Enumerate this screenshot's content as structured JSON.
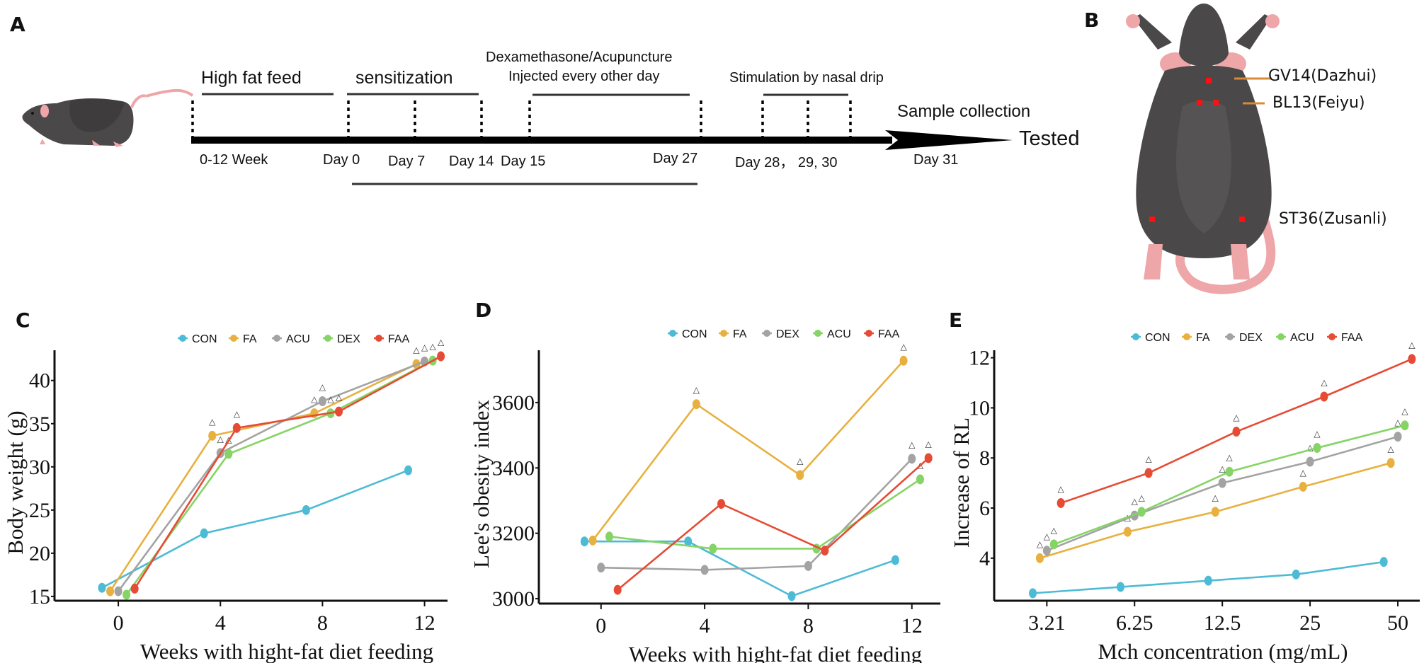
{
  "panels": {
    "A": {
      "letter": "A",
      "phases": {
        "high_fat_feed": "High fat feed",
        "sensitization": "sensitization",
        "dex_acu_line1": "Dexamethasone/Acupuncture",
        "dex_acu_line2": "Injected every other day",
        "nasal_drip": "Stimulation by nasal drip",
        "sample_collection": "Sample collection",
        "tested": "Tested"
      },
      "timepoints": {
        "weeks": "0-12 Week",
        "day0": "Day 0",
        "day7": "Day 7",
        "day14": "Day 14",
        "day15": "Day 15",
        "day27": "Day 27",
        "day28_30": "Day 28， 29, 30",
        "day31": "Day 31"
      }
    },
    "B": {
      "letter": "B",
      "acupoints": {
        "gv14": "GV14(Dazhui)",
        "bl13": "BL13(Feiyu)",
        "st36": "ST36(Zusanli)"
      },
      "colors": {
        "body": "#4a4849",
        "skin": "#eea6a8",
        "point": "#ff1010",
        "needle": "#d98a36"
      }
    },
    "C": {
      "letter": "C"
    },
    "D": {
      "letter": "D"
    },
    "E": {
      "letter": "E"
    }
  },
  "colors": {
    "CON": "#4dbbd5",
    "FA": "#e8b03f",
    "ACU_C": "#a3a3a3",
    "DEX_C": "#86d466",
    "DEX": "#a3a3a3",
    "ACU": "#86d466",
    "FAA": "#e64b35"
  },
  "chart_data": [
    {
      "type": "line",
      "panel": "C",
      "title": "",
      "xlabel": "Weeks with hight-fat diet feeding",
      "ylabel": "Body weight (g)",
      "x": [
        0,
        4,
        8,
        12
      ],
      "x_ticks": [
        "0",
        "4",
        "8",
        "12"
      ],
      "xlim": [
        -2.5,
        12.9
      ],
      "ylim": [
        14.5,
        43.5
      ],
      "y_ticks": [
        15,
        20,
        25,
        30,
        35,
        40
      ],
      "legend": {
        "placement": "top",
        "entries": [
          "CON",
          "FA",
          "ACU",
          "DEX",
          "FAA"
        ]
      },
      "dodge": [
        -0.64,
        -0.32,
        0,
        0.32,
        0.64
      ],
      "series": [
        {
          "name": "CON",
          "color_key": "CON",
          "values": [
            16.0,
            22.3,
            25.0,
            29.6
          ],
          "sig": [
            false,
            false,
            false,
            false
          ]
        },
        {
          "name": "FA",
          "color_key": "FA",
          "values": [
            15.6,
            33.6,
            36.2,
            41.9
          ],
          "sig": [
            false,
            true,
            true,
            true
          ]
        },
        {
          "name": "ACU",
          "color_key": "ACU_C",
          "values": [
            15.6,
            31.6,
            37.6,
            42.2
          ],
          "sig": [
            false,
            true,
            true,
            true
          ]
        },
        {
          "name": "DEX",
          "color_key": "DEX_C",
          "values": [
            15.2,
            31.5,
            36.2,
            42.3
          ],
          "sig": [
            false,
            true,
            true,
            true
          ]
        },
        {
          "name": "FAA",
          "color_key": "FAA",
          "values": [
            15.9,
            34.5,
            36.4,
            42.8
          ],
          "sig": [
            false,
            true,
            true,
            true
          ]
        }
      ],
      "grid": false
    },
    {
      "type": "line",
      "panel": "D",
      "title": "",
      "xlabel": "Weeks with hight-fat diet feeding",
      "ylabel": "Lee's obesity index",
      "x": [
        0,
        4,
        8,
        12
      ],
      "x_ticks": [
        "0",
        "4",
        "8",
        "12"
      ],
      "xlim": [
        -2.4,
        13.1
      ],
      "ylim": [
        2985,
        3760
      ],
      "y_ticks": [
        3000,
        3200,
        3400,
        3600
      ],
      "legend": {
        "placement": "top",
        "entries": [
          "CON",
          "FA",
          "DEX",
          "ACU",
          "FAA"
        ]
      },
      "dodge": [
        -0.64,
        -0.32,
        0,
        0.32,
        0.64
      ],
      "series": [
        {
          "name": "CON",
          "color_key": "CON",
          "values": [
            3175,
            3175,
            3008,
            3118
          ],
          "sig": [
            false,
            false,
            false,
            false
          ]
        },
        {
          "name": "FA",
          "color_key": "FA",
          "values": [
            3178,
            3595,
            3378,
            3728
          ],
          "sig": [
            false,
            true,
            true,
            true
          ]
        },
        {
          "name": "DEX",
          "color_key": "DEX",
          "values": [
            3095,
            3088,
            3100,
            3428
          ],
          "sig": [
            false,
            false,
            false,
            true
          ]
        },
        {
          "name": "ACU",
          "color_key": "ACU",
          "values": [
            3190,
            3153,
            3153,
            3365
          ],
          "sig": [
            false,
            false,
            false,
            true
          ]
        },
        {
          "name": "FAA",
          "color_key": "FAA",
          "values": [
            3027,
            3290,
            3147,
            3430
          ],
          "sig": [
            false,
            false,
            false,
            true
          ]
        }
      ],
      "grid": false
    },
    {
      "type": "line",
      "panel": "E",
      "title": "",
      "xlabel": "Mch concentration (mg/mL)",
      "ylabel": "Increase of RL",
      "x": [
        0,
        1,
        2,
        3,
        4
      ],
      "x_ticks": [
        "3.21",
        "6.25",
        "12.5",
        "25",
        "50"
      ],
      "xlim": [
        -0.6,
        4.25
      ],
      "ylim": [
        2.3,
        12.3
      ],
      "y_ticks": [
        4,
        6,
        8,
        10,
        12
      ],
      "legend": {
        "placement": "top",
        "entries": [
          "CON",
          "FA",
          "DEX",
          "ACU",
          "FAA"
        ]
      },
      "dodge": [
        -0.16,
        -0.08,
        0,
        0.08,
        0.16
      ],
      "series": [
        {
          "name": "CON",
          "color_key": "CON",
          "values": [
            2.6,
            2.85,
            3.1,
            3.35,
            3.85
          ],
          "sig": [
            false,
            false,
            false,
            false,
            false
          ]
        },
        {
          "name": "FA",
          "color_key": "FA",
          "values": [
            4.0,
            5.05,
            5.85,
            6.85,
            7.8
          ],
          "sig": [
            true,
            true,
            true,
            true,
            true
          ]
        },
        {
          "name": "DEX",
          "color_key": "DEX",
          "values": [
            4.3,
            5.7,
            7.0,
            7.85,
            8.85
          ],
          "sig": [
            true,
            true,
            true,
            true,
            true
          ]
        },
        {
          "name": "ACU",
          "color_key": "ACU",
          "values": [
            4.55,
            5.85,
            7.45,
            8.4,
            9.3
          ],
          "sig": [
            true,
            true,
            true,
            true,
            true
          ]
        },
        {
          "name": "FAA",
          "color_key": "FAA",
          "values": [
            6.2,
            7.4,
            9.05,
            10.45,
            11.95
          ],
          "sig": [
            true,
            true,
            true,
            true,
            true
          ]
        }
      ],
      "grid": false
    }
  ]
}
